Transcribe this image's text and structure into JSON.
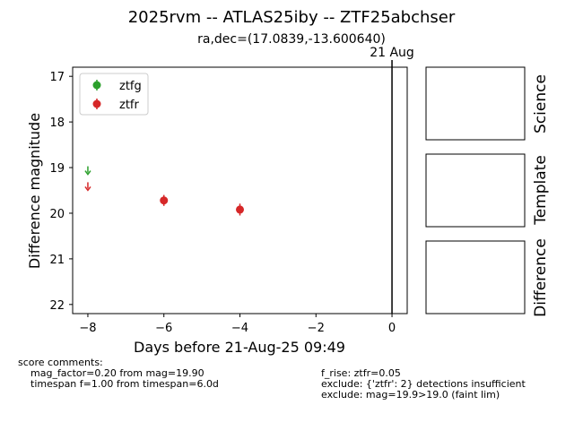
{
  "title": "2025rvm -- ATLAS25iby -- ZTF25abchser",
  "subtitle": "ra,dec=(17.0839,-13.600640)",
  "colors": {
    "ztfg": "#2ca02c",
    "ztfr": "#d62728"
  },
  "chart_data": {
    "type": "scatter",
    "xlabel": "Days before 21-Aug-25 09:49",
    "ylabel": "Difference magnitude",
    "xlim": [
      -8.4,
      0.4
    ],
    "ylim": [
      22.2,
      16.8
    ],
    "y_inverted": true,
    "xticks": [
      -8,
      -6,
      -4,
      -2,
      0
    ],
    "xtick_labels": [
      "−8",
      "−6",
      "−4",
      "−2",
      "0"
    ],
    "yticks": [
      17,
      18,
      19,
      20,
      21,
      22
    ],
    "ytick_labels": [
      "17",
      "18",
      "19",
      "20",
      "21",
      "22"
    ],
    "legend_position": "top-left",
    "grid": false,
    "series": [
      {
        "name": "ztfg",
        "color": "#2ca02c",
        "detections": [],
        "upper_limits": [
          {
            "x": -8.0,
            "y": 19.05
          }
        ]
      },
      {
        "name": "ztfr",
        "color": "#d62728",
        "detections": [
          {
            "x": -6.0,
            "y": 19.72,
            "err": 0.12
          },
          {
            "x": -4.0,
            "y": 19.92,
            "err": 0.13
          }
        ],
        "upper_limits": [
          {
            "x": -8.0,
            "y": 19.4
          }
        ]
      }
    ],
    "vertical_line": {
      "x": 0,
      "label": "21 Aug"
    }
  },
  "stamps": [
    {
      "label": "Science"
    },
    {
      "label": "Template"
    },
    {
      "label": "Difference"
    }
  ],
  "comments": {
    "header": "score comments:",
    "left": [
      "mag_factor=0.20 from mag=19.90",
      "timespan f=1.00 from timespan=6.0d"
    ],
    "right": [
      "f_rise: ztfr=0.05",
      "exclude: {'ztfr': 2} detections insufficient",
      "exclude: mag=19.9>19.0 (faint lim)"
    ]
  }
}
